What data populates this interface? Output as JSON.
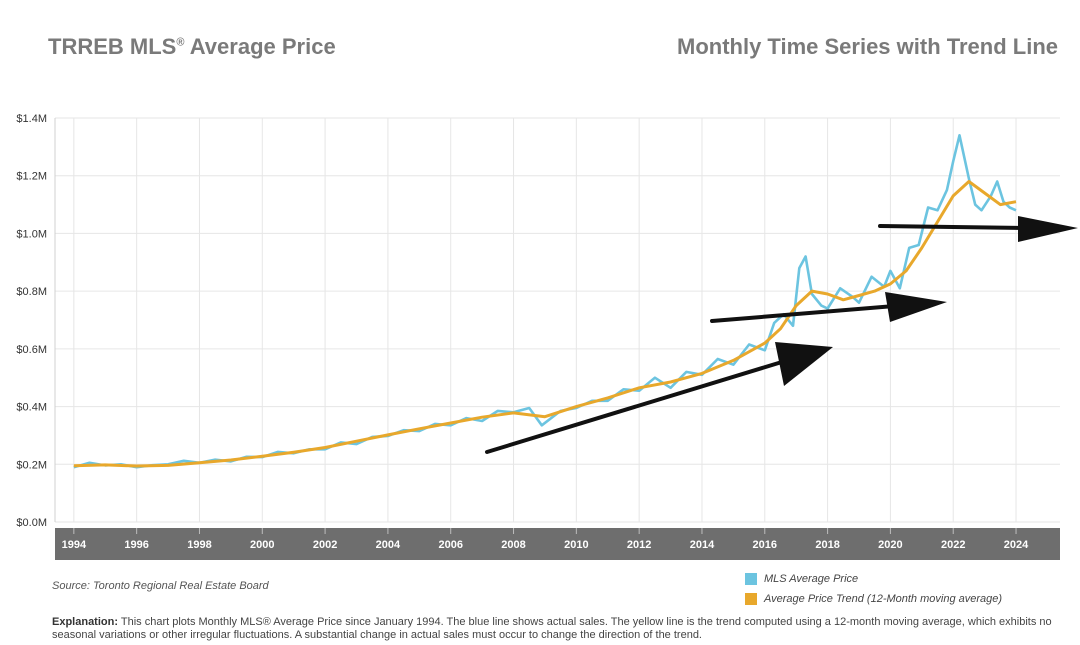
{
  "header": {
    "title_main": "TRREB MLS",
    "title_reg": "®",
    "title_rest": " Average Price",
    "subtitle": "Monthly Time Series with Trend Line"
  },
  "source": "Source: Toronto Regional Real Estate Board",
  "explanation": {
    "label": "Explanation:",
    "text": "This chart plots Monthly MLS® Average Price since January 1994. The blue line shows actual sales. The yellow line is the trend computed using a 12-month moving average, which exhibits no seasonal variations or other irregular fluctuations. A substantial change in actual sales must occur to change the direction of the trend."
  },
  "colors": {
    "actual": "#6cc4e0",
    "trend": "#e8a82c",
    "axis_band": "#6e6e6e",
    "grid": "#e6e6e6",
    "arrow": "#111111"
  },
  "chart_data": {
    "type": "line",
    "xlim": [
      1993.4,
      2025.4
    ],
    "ylim": [
      0,
      1400000
    ],
    "y_ticks": [
      {
        "value": 0,
        "label": "$0.0M"
      },
      {
        "value": 200000,
        "label": "$0.2M"
      },
      {
        "value": 400000,
        "label": "$0.4M"
      },
      {
        "value": 600000,
        "label": "$0.6M"
      },
      {
        "value": 800000,
        "label": "$0.8M"
      },
      {
        "value": 1000000,
        "label": "$1.0M"
      },
      {
        "value": 1200000,
        "label": "$1.2M"
      },
      {
        "value": 1400000,
        "label": "$1.4M"
      }
    ],
    "x_ticks": [
      "1994",
      "1996",
      "1998",
      "2000",
      "2002",
      "2004",
      "2006",
      "2008",
      "2010",
      "2012",
      "2014",
      "2016",
      "2018",
      "2020",
      "2022",
      "2024"
    ],
    "grid": true,
    "legend_position": "bottom-right",
    "series": [
      {
        "name": "MLS Average Price",
        "color": "#6cc4e0",
        "points": [
          [
            1994.0,
            190000
          ],
          [
            1994.5,
            205000
          ],
          [
            1995.0,
            196000
          ],
          [
            1995.5,
            200000
          ],
          [
            1996.0,
            190000
          ],
          [
            1996.5,
            197000
          ],
          [
            1997.0,
            200000
          ],
          [
            1997.5,
            212000
          ],
          [
            1998.0,
            205000
          ],
          [
            1998.5,
            216000
          ],
          [
            1999.0,
            210000
          ],
          [
            1999.5,
            226000
          ],
          [
            2000.0,
            225000
          ],
          [
            2000.5,
            243000
          ],
          [
            2001.0,
            238000
          ],
          [
            2001.5,
            252000
          ],
          [
            2002.0,
            252000
          ],
          [
            2002.5,
            276000
          ],
          [
            2003.0,
            270000
          ],
          [
            2003.5,
            295000
          ],
          [
            2004.0,
            298000
          ],
          [
            2004.5,
            318000
          ],
          [
            2005.0,
            315000
          ],
          [
            2005.5,
            340000
          ],
          [
            2006.0,
            335000
          ],
          [
            2006.5,
            360000
          ],
          [
            2007.0,
            350000
          ],
          [
            2007.5,
            385000
          ],
          [
            2008.0,
            380000
          ],
          [
            2008.5,
            395000
          ],
          [
            2008.9,
            335000
          ],
          [
            2009.5,
            385000
          ],
          [
            2010.0,
            395000
          ],
          [
            2010.5,
            420000
          ],
          [
            2011.0,
            420000
          ],
          [
            2011.5,
            460000
          ],
          [
            2012.0,
            455000
          ],
          [
            2012.5,
            500000
          ],
          [
            2013.0,
            465000
          ],
          [
            2013.5,
            520000
          ],
          [
            2014.0,
            510000
          ],
          [
            2014.5,
            565000
          ],
          [
            2015.0,
            545000
          ],
          [
            2015.5,
            615000
          ],
          [
            2016.0,
            595000
          ],
          [
            2016.3,
            690000
          ],
          [
            2016.6,
            720000
          ],
          [
            2016.9,
            680000
          ],
          [
            2017.1,
            880000
          ],
          [
            2017.3,
            920000
          ],
          [
            2017.5,
            790000
          ],
          [
            2017.8,
            750000
          ],
          [
            2018.0,
            740000
          ],
          [
            2018.4,
            810000
          ],
          [
            2018.8,
            780000
          ],
          [
            2019.0,
            760000
          ],
          [
            2019.4,
            850000
          ],
          [
            2019.8,
            815000
          ],
          [
            2020.0,
            870000
          ],
          [
            2020.3,
            810000
          ],
          [
            2020.6,
            950000
          ],
          [
            2020.9,
            960000
          ],
          [
            2021.2,
            1090000
          ],
          [
            2021.5,
            1080000
          ],
          [
            2021.8,
            1150000
          ],
          [
            2022.0,
            1250000
          ],
          [
            2022.2,
            1340000
          ],
          [
            2022.5,
            1190000
          ],
          [
            2022.7,
            1100000
          ],
          [
            2022.9,
            1080000
          ],
          [
            2023.2,
            1130000
          ],
          [
            2023.4,
            1180000
          ],
          [
            2023.6,
            1110000
          ],
          [
            2023.8,
            1090000
          ],
          [
            2024.0,
            1080000
          ]
        ]
      },
      {
        "name": "Average Price Trend (12-Month moving average)",
        "color": "#e8a82c",
        "points": [
          [
            1994.0,
            195000
          ],
          [
            1995.0,
            198000
          ],
          [
            1996.0,
            194000
          ],
          [
            1997.0,
            196000
          ],
          [
            1998.0,
            205000
          ],
          [
            1999.0,
            215000
          ],
          [
            2000.0,
            228000
          ],
          [
            2001.0,
            242000
          ],
          [
            2002.0,
            258000
          ],
          [
            2003.0,
            280000
          ],
          [
            2004.0,
            302000
          ],
          [
            2005.0,
            323000
          ],
          [
            2006.0,
            343000
          ],
          [
            2007.0,
            363000
          ],
          [
            2008.0,
            378000
          ],
          [
            2009.0,
            365000
          ],
          [
            2010.0,
            400000
          ],
          [
            2011.0,
            430000
          ],
          [
            2012.0,
            465000
          ],
          [
            2013.0,
            485000
          ],
          [
            2014.0,
            515000
          ],
          [
            2015.0,
            560000
          ],
          [
            2016.0,
            620000
          ],
          [
            2016.5,
            670000
          ],
          [
            2017.0,
            750000
          ],
          [
            2017.5,
            800000
          ],
          [
            2018.0,
            790000
          ],
          [
            2018.5,
            770000
          ],
          [
            2019.0,
            785000
          ],
          [
            2019.5,
            800000
          ],
          [
            2020.0,
            825000
          ],
          [
            2020.5,
            870000
          ],
          [
            2021.0,
            950000
          ],
          [
            2021.5,
            1040000
          ],
          [
            2022.0,
            1130000
          ],
          [
            2022.5,
            1180000
          ],
          [
            2023.0,
            1140000
          ],
          [
            2023.5,
            1100000
          ],
          [
            2024.0,
            1110000
          ]
        ]
      }
    ]
  }
}
